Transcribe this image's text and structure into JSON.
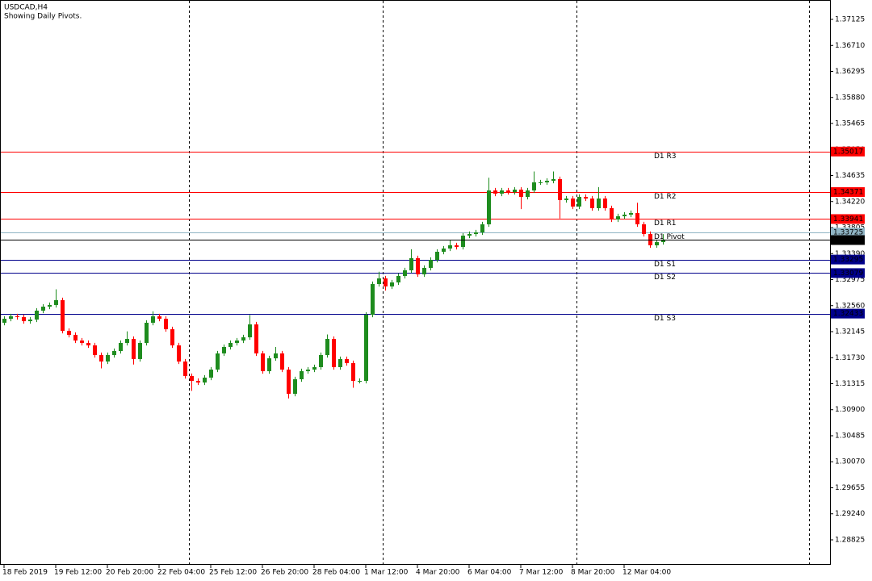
{
  "chart_data": {
    "type": "candlestick",
    "title": "USDCAD,H4",
    "subtitle": "Showing Daily Pivots.",
    "categories": [
      "18 Feb 2019",
      null,
      null,
      null,
      null,
      null,
      null,
      null,
      "19 Feb 12:00",
      null,
      null,
      null,
      null,
      null,
      null,
      null,
      "20 Feb 20:00",
      null,
      null,
      null,
      null,
      null,
      null,
      null,
      "22 Feb 04:00",
      null,
      null,
      null,
      null,
      null,
      null,
      null,
      "25 Feb 12:00",
      null,
      null,
      null,
      null,
      null,
      null,
      null,
      "26 Feb 20:00",
      null,
      null,
      null,
      null,
      null,
      null,
      null,
      "28 Feb 04:00",
      null,
      null,
      null,
      null,
      null,
      null,
      null,
      "1 Mar 12:00",
      null,
      null,
      null,
      null,
      null,
      null,
      null,
      "4 Mar 20:00",
      null,
      null,
      null,
      null,
      null,
      null,
      null,
      "6 Mar 04:00",
      null,
      null,
      null,
      null,
      null,
      null,
      null,
      "7 Mar 12:00",
      null,
      null,
      null,
      null,
      null,
      null,
      null,
      "8 Mar 20:00",
      null,
      null,
      null,
      null,
      null,
      null,
      null,
      "12 Mar 04:00",
      null,
      null,
      null,
      null,
      null,
      null
    ],
    "open": [
      1.32287,
      1.32351,
      1.3239,
      1.32377,
      1.32312,
      1.32338,
      1.3248,
      1.32544,
      1.3257,
      1.32647,
      1.32158,
      1.32094,
      1.32004,
      1.31965,
      1.31926,
      1.31772,
      1.31669,
      1.31772,
      1.31836,
      1.31965,
      1.32029,
      1.31708,
      1.31965,
      1.32287,
      1.3239,
      1.32351,
      1.32184,
      1.31926,
      1.31669,
      1.31437,
      1.3136,
      1.31334,
      1.31412,
      1.3154,
      1.31798,
      1.31901,
      1.31965,
      1.32004,
      1.32055,
      1.32261,
      1.31798,
      1.31515,
      1.3172,
      1.31798,
      1.3154,
      1.31154,
      1.31386,
      1.31515,
      1.3154,
      1.31579,
      1.31772,
      1.32029,
      1.31579,
      1.31708,
      1.31643,
      1.3136,
      1.3136,
      1.32415,
      1.32904,
      1.32994,
      1.32866,
      1.3293,
      1.33033,
      1.33123,
      1.33316,
      1.33059,
      1.33162,
      1.3329,
      1.33419,
      1.33471,
      1.33522,
      1.33496,
      1.33676,
      1.33702,
      1.33728,
      1.33857,
      1.34397,
      1.34346,
      1.34397,
      1.34371,
      1.3441,
      1.34294,
      1.34397,
      1.34526,
      1.34526,
      1.34551,
      1.34577,
      1.34243,
      1.34268,
      1.3414,
      1.34294,
      1.34268,
      1.34114,
      1.34268,
      1.34114,
      1.33934,
      1.33985,
      1.34011,
      1.34037,
      1.33857,
      1.33702,
      1.33522,
      1.33573
    ],
    "high": [
      1.32391,
      1.3243,
      1.3243,
      1.32417,
      1.32378,
      1.3252,
      1.32584,
      1.3261,
      1.3282,
      1.32687,
      1.32198,
      1.32134,
      1.32044,
      1.32005,
      1.31966,
      1.31812,
      1.31812,
      1.31876,
      1.32005,
      1.3215,
      1.32069,
      1.32005,
      1.32327,
      1.3247,
      1.3243,
      1.32391,
      1.32224,
      1.31966,
      1.31709,
      1.31477,
      1.314,
      1.31452,
      1.3158,
      1.31838,
      1.31941,
      1.32005,
      1.32044,
      1.32095,
      1.3241,
      1.32301,
      1.31838,
      1.3176,
      1.319,
      1.31838,
      1.3158,
      1.31426,
      1.31555,
      1.3158,
      1.31619,
      1.31812,
      1.321,
      1.32069,
      1.31748,
      1.31748,
      1.31683,
      1.314,
      1.32455,
      1.32944,
      1.331,
      1.33034,
      1.3297,
      1.33073,
      1.33163,
      1.3346,
      1.33356,
      1.33202,
      1.3333,
      1.33459,
      1.33511,
      1.336,
      1.33562,
      1.33716,
      1.33742,
      1.33768,
      1.33897,
      1.346,
      1.34437,
      1.34437,
      1.34437,
      1.3445,
      1.3445,
      1.34437,
      1.347,
      1.34566,
      1.34591,
      1.347,
      1.34617,
      1.34308,
      1.34308,
      1.34334,
      1.34334,
      1.34308,
      1.3445,
      1.34308,
      1.34154,
      1.34025,
      1.34051,
      1.34077,
      1.342,
      1.33897,
      1.33742,
      1.33613,
      1.337
    ],
    "low": [
      1.32247,
      1.32311,
      1.32337,
      1.32272,
      1.32272,
      1.32298,
      1.3244,
      1.32504,
      1.3253,
      1.32118,
      1.32054,
      1.31964,
      1.31925,
      1.31886,
      1.31732,
      1.3156,
      1.31629,
      1.31732,
      1.31796,
      1.31925,
      1.3162,
      1.31668,
      1.31925,
      1.32247,
      1.32311,
      1.32144,
      1.31886,
      1.31629,
      1.31397,
      1.312,
      1.31294,
      1.31294,
      1.31372,
      1.315,
      1.31758,
      1.31861,
      1.31925,
      1.31964,
      1.32015,
      1.31758,
      1.31475,
      1.31475,
      1.3168,
      1.315,
      1.3108,
      1.31114,
      1.31346,
      1.31475,
      1.315,
      1.31539,
      1.31732,
      1.31539,
      1.31539,
      1.31603,
      1.3125,
      1.3132,
      1.3132,
      1.32375,
      1.32864,
      1.328,
      1.32826,
      1.3289,
      1.32993,
      1.33083,
      1.33019,
      1.33019,
      1.33122,
      1.3325,
      1.33379,
      1.33431,
      1.33456,
      1.33456,
      1.33636,
      1.33662,
      1.33688,
      1.33817,
      1.34306,
      1.34306,
      1.34331,
      1.34331,
      1.341,
      1.34254,
      1.34357,
      1.34486,
      1.34486,
      1.34511,
      1.3395,
      1.34203,
      1.341,
      1.341,
      1.34228,
      1.34074,
      1.34074,
      1.34074,
      1.33894,
      1.33894,
      1.33945,
      1.33971,
      1.33817,
      1.33662,
      1.33482,
      1.33482,
      1.33533
    ],
    "close": [
      1.32351,
      1.3239,
      1.32377,
      1.32312,
      1.32338,
      1.3248,
      1.32544,
      1.3257,
      1.32647,
      1.32158,
      1.32094,
      1.32004,
      1.31965,
      1.31926,
      1.31772,
      1.31669,
      1.31772,
      1.31836,
      1.31965,
      1.32029,
      1.31708,
      1.31965,
      1.32287,
      1.3239,
      1.32351,
      1.32184,
      1.31926,
      1.31669,
      1.31437,
      1.3136,
      1.31334,
      1.31412,
      1.3154,
      1.31798,
      1.31901,
      1.31965,
      1.32004,
      1.32055,
      1.32261,
      1.31798,
      1.31515,
      1.3172,
      1.31798,
      1.3154,
      1.31154,
      1.31386,
      1.31515,
      1.3154,
      1.31579,
      1.31772,
      1.32029,
      1.31579,
      1.31708,
      1.31643,
      1.3136,
      1.3136,
      1.32415,
      1.32904,
      1.32994,
      1.32866,
      1.3293,
      1.33033,
      1.33123,
      1.33316,
      1.33059,
      1.33162,
      1.3329,
      1.33419,
      1.33471,
      1.33522,
      1.33496,
      1.33676,
      1.33702,
      1.33728,
      1.33857,
      1.34397,
      1.34346,
      1.34397,
      1.34371,
      1.3441,
      1.34294,
      1.34397,
      1.34526,
      1.34526,
      1.34551,
      1.34577,
      1.34243,
      1.34268,
      1.3414,
      1.34294,
      1.34268,
      1.34114,
      1.34268,
      1.34114,
      1.33934,
      1.33985,
      1.34011,
      1.34037,
      1.33857,
      1.33702,
      1.33522,
      1.33573,
      1.33614
    ],
    "up_color": "#1e8c1e",
    "down_color": "#ff0000",
    "ylim": [
      1.28426,
      1.37434
    ],
    "yticks": [
      1.28825,
      {
        "value": 1.2924,
        "label": "1.29240"
      },
      1.29655,
      {
        "value": 1.3007,
        "label": "1.30070"
      },
      1.30485,
      {
        "value": 1.309,
        "label": "1.30900"
      },
      1.31315,
      {
        "value": 1.3173,
        "label": "1.31730"
      },
      1.32145,
      {
        "value": 1.3256,
        "label": "1.32560"
      },
      1.32975,
      {
        "value": 1.3339,
        "label": "1.33390"
      },
      1.33805,
      {
        "value": 1.3422,
        "label": "1.34220"
      },
      1.34635,
      {
        "value": 1.3505,
        "label": "1.35050"
      },
      1.35465,
      {
        "value": 1.3588,
        "label": "1.35880"
      },
      1.36295,
      {
        "value": 1.3671,
        "label": "1.36710"
      },
      1.37125
    ],
    "levels": [
      {
        "name": "D1 R3",
        "value": 1.35017,
        "color": "#ff0000"
      },
      {
        "name": "D1 R2",
        "value": 1.34371,
        "color": "#ff0000"
      },
      {
        "name": "D1 R1",
        "value": 1.33941,
        "color": "#ff0000"
      },
      {
        "name": "D1 Pivot",
        "value": 1.33725,
        "color": "#8fb4c4"
      },
      {
        "name": "D1 S1",
        "value": 1.33295,
        "color": "#00008b"
      },
      {
        "name": "D1 S2",
        "value": 1.33079,
        "color": "#00008b"
      },
      {
        "name": "D1 S3",
        "value": 1.32433,
        "color": "#00008b"
      }
    ],
    "current_price": 1.33614
  }
}
